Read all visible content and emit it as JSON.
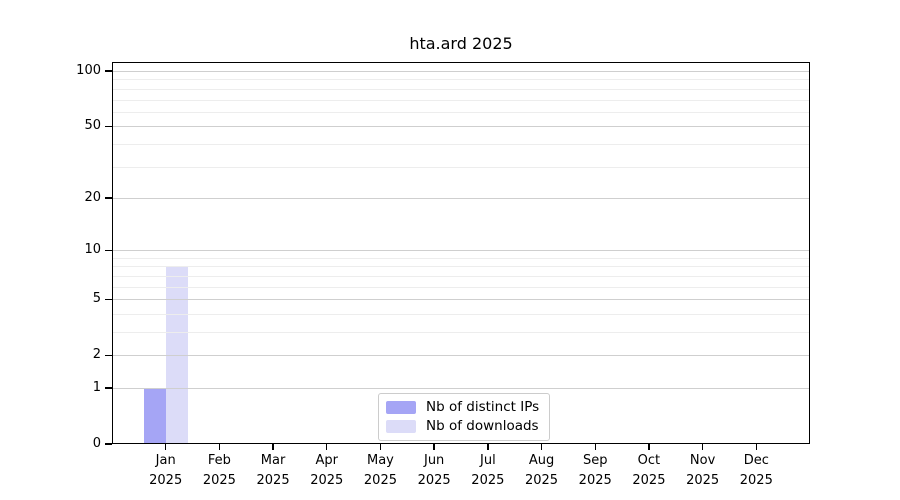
{
  "chart_data": {
    "type": "bar",
    "title": "hta.ard 2025",
    "months": [
      "Jan",
      "Feb",
      "Mar",
      "Apr",
      "May",
      "Jun",
      "Jul",
      "Aug",
      "Sep",
      "Oct",
      "Nov",
      "Dec"
    ],
    "year_label": "2025",
    "series": [
      {
        "name": "Nb of distinct IPs",
        "color": "#a5a5f5",
        "values": [
          1,
          0,
          0,
          0,
          0,
          0,
          0,
          0,
          0,
          0,
          0,
          0
        ]
      },
      {
        "name": "Nb of downloads",
        "color": "#dcdcf8",
        "values": [
          8,
          0,
          0,
          0,
          0,
          0,
          0,
          0,
          0,
          0,
          0,
          0
        ]
      }
    ],
    "y_axis": {
      "scale": "log1p",
      "major_ticks": [
        0,
        1,
        2,
        5,
        10,
        20,
        50,
        100
      ],
      "minor_ticks": [
        3,
        4,
        6,
        7,
        8,
        9,
        30,
        40,
        60,
        70,
        80,
        90
      ],
      "ylim": [
        0,
        112
      ]
    },
    "xlabel": "",
    "ylabel": "",
    "grid": true,
    "legend_position": "inside-bottom-center",
    "colors": {
      "grid_major": "#cfcfcf",
      "grid_minor": "#ededed",
      "spine": "#000000",
      "background": "#ffffff"
    }
  }
}
